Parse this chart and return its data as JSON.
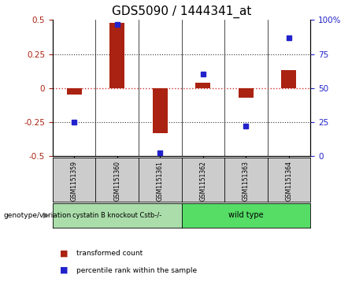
{
  "title": "GDS5090 / 1444341_at",
  "samples": [
    "GSM1151359",
    "GSM1151360",
    "GSM1151361",
    "GSM1151362",
    "GSM1151363",
    "GSM1151364"
  ],
  "transformed_count": [
    -0.05,
    0.48,
    -0.33,
    0.04,
    -0.07,
    0.13
  ],
  "percentile_rank": [
    25,
    97,
    2,
    60,
    22,
    87
  ],
  "ylim_left": [
    -0.5,
    0.5
  ],
  "ylim_right": [
    0,
    100
  ],
  "yticks_left": [
    -0.5,
    -0.25,
    0.0,
    0.25,
    0.5
  ],
  "yticks_right": [
    0,
    25,
    50,
    75,
    100
  ],
  "bar_color": "#aa2211",
  "dot_color": "#2222cc",
  "zero_line_color": "#cc3333",
  "dotted_line_color": "#333333",
  "group1_label": "cystatin B knockout Cstb-/-",
  "group2_label": "wild type",
  "group1_color": "#aaddaa",
  "group2_color": "#55dd66",
  "group1_samples": [
    0,
    1,
    2
  ],
  "group2_samples": [
    3,
    4,
    5
  ],
  "genotype_label": "genotype/variation",
  "legend_bar_label": "transformed count",
  "legend_dot_label": "percentile rank within the sample",
  "background_color": "#ffffff",
  "plot_bg_color": "#ffffff",
  "bar_width": 0.35,
  "title_fontsize": 11,
  "tick_fontsize": 7.5,
  "label_fontsize": 7.5
}
